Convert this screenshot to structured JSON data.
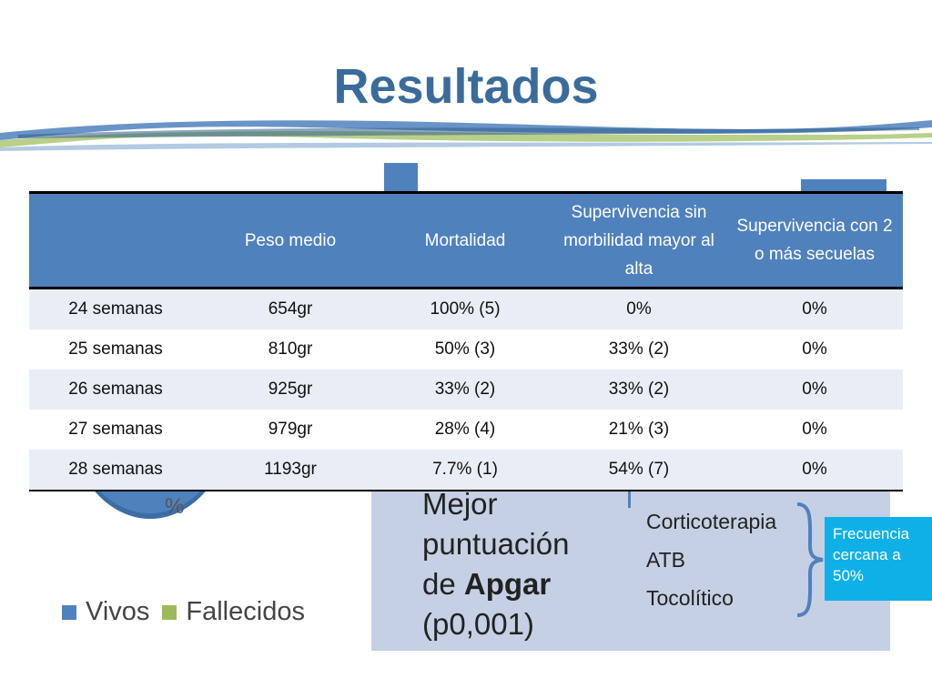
{
  "slide": {
    "title": "Resultados"
  },
  "table": {
    "headers": [
      "",
      "Peso medio",
      "Mortalidad",
      "Supervivencia sin morbilidad mayor al alta",
      "Supervivencia con 2 o más secuelas"
    ],
    "rows": [
      [
        "24 semanas",
        "654gr",
        "100% (5)",
        "0%",
        "0%"
      ],
      [
        "25 semanas",
        "810gr",
        "50% (3)",
        "33% (2)",
        "0%"
      ],
      [
        "26 semanas",
        "925gr",
        "33% (2)",
        "33% (2)",
        "0%"
      ],
      [
        "27 semanas",
        "979gr",
        "28% (4)",
        "21% (3)",
        "0%"
      ],
      [
        "28 semanas",
        "1193gr",
        "7.7% (1)",
        "54% (7)",
        "0%"
      ]
    ]
  },
  "pie": {
    "percent_label": "%",
    "legend": [
      {
        "label": "Vivos",
        "color": "#4f81bd"
      },
      {
        "label": "Fallecidos",
        "color": "#9bbb59"
      }
    ]
  },
  "panel": {
    "line1": "Mejor",
    "line2": "puntuación",
    "line3_prefix": "de ",
    "line3_bold": "Apgar",
    "line4": "(p0,001)",
    "factors": [
      "Corticoterapia",
      "ATB",
      "Tocolítico"
    ]
  },
  "callout": {
    "text": "Frecuencia cercana a 50%"
  },
  "colors": {
    "title": "#3a6b9a",
    "header": "#4f81bd",
    "callout": "#0fb0e8",
    "panel": "#c5d0e4"
  }
}
